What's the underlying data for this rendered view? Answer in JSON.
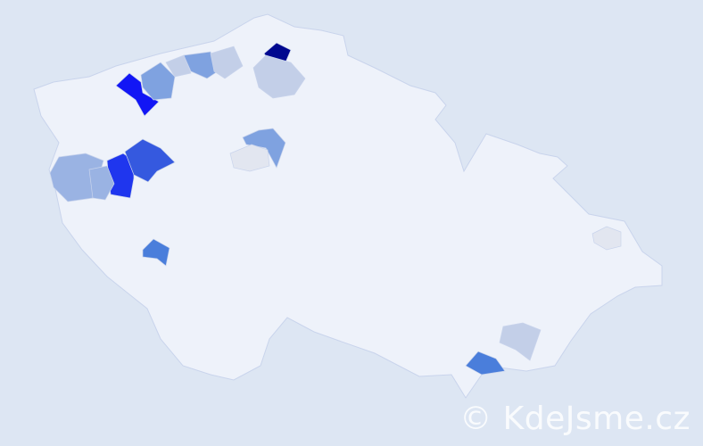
{
  "watermark": "© KdeJsme.cz",
  "colors": {
    "background": "#dde6f3",
    "country_fill": "#eef2fa",
    "border": "#c9d4ec",
    "scale": [
      "#e2e6f0",
      "#c3cfe8",
      "#9ab3e3",
      "#7fa2e0",
      "#4a7edb",
      "#3559df",
      "#1f36ee",
      "#1216f5",
      "#00088f"
    ]
  },
  "highlighted_districts": [
    {
      "level": 8,
      "color": "#00088f"
    },
    {
      "level": 7,
      "color": "#1216f5"
    },
    {
      "level": 6,
      "color": "#1f36ee"
    },
    {
      "level": 5,
      "color": "#3559df"
    },
    {
      "level": 4,
      "color": "#4a7edb"
    },
    {
      "level": 4,
      "color": "#4a7edb"
    },
    {
      "level": 3,
      "color": "#7fa2e0"
    },
    {
      "level": 3,
      "color": "#7fa2e0"
    },
    {
      "level": 3,
      "color": "#7fa2e0"
    },
    {
      "level": 2,
      "color": "#9ab3e3"
    },
    {
      "level": 2,
      "color": "#9ab3e3"
    },
    {
      "level": 1,
      "color": "#c3cfe8"
    },
    {
      "level": 1,
      "color": "#c3cfe8"
    },
    {
      "level": 1,
      "color": "#c3cfe8"
    },
    {
      "level": 1,
      "color": "#c3cfe8"
    },
    {
      "level": 0,
      "color": "#e2e6f0"
    },
    {
      "level": 0,
      "color": "#e2e6f0"
    }
  ]
}
